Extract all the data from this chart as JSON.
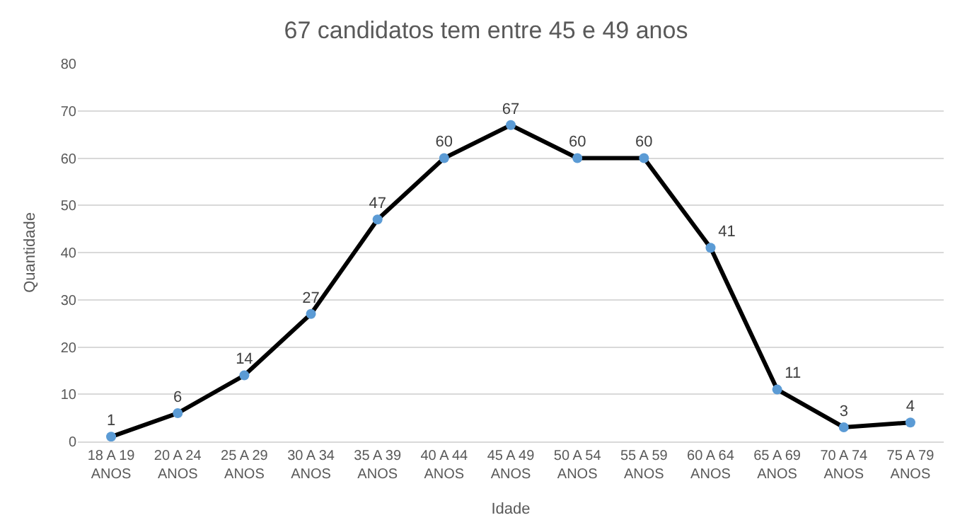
{
  "chart_data": {
    "type": "line",
    "title": "67 candidatos tem entre 45 e 49 anos",
    "xlabel": "Idade",
    "ylabel": "Quantidade",
    "categories": [
      "18 A 19\nANOS",
      "20 A 24\nANOS",
      "25 A 29\nANOS",
      "30 A 34\nANOS",
      "35 A 39\nANOS",
      "40 A 44\nANOS",
      "45 A 49\nANOS",
      "50 A 54\nANOS",
      "55 A 59\nANOS",
      "60 A 64\nANOS",
      "65 A 69\nANOS",
      "70 A 74\nANOS",
      "75 A 79\nANOS"
    ],
    "series": [
      {
        "color": "#000000",
        "colors": [
          "#5b9bd5",
          "#5b9bd5",
          "#5b9bd5",
          "#5b9bd5",
          "#5b9bd5",
          "#5b9bd5",
          "#5b9bd5",
          "#5b9bd5",
          "#5b9bd5",
          "#5b9bd5",
          "#5b9bd5",
          "#5b9bd5",
          "#5b9bd5"
        ],
        "values": [
          1,
          6,
          14,
          27,
          47,
          60,
          67,
          60,
          60,
          41,
          11,
          3,
          4
        ]
      }
    ],
    "marker": "circle",
    "line_style": "solid",
    "ylim": [
      0,
      80
    ],
    "yticks": [
      0,
      10,
      20,
      30,
      40,
      50,
      60,
      70,
      80
    ],
    "grid": "y",
    "data_labels": true,
    "legend": false
  }
}
